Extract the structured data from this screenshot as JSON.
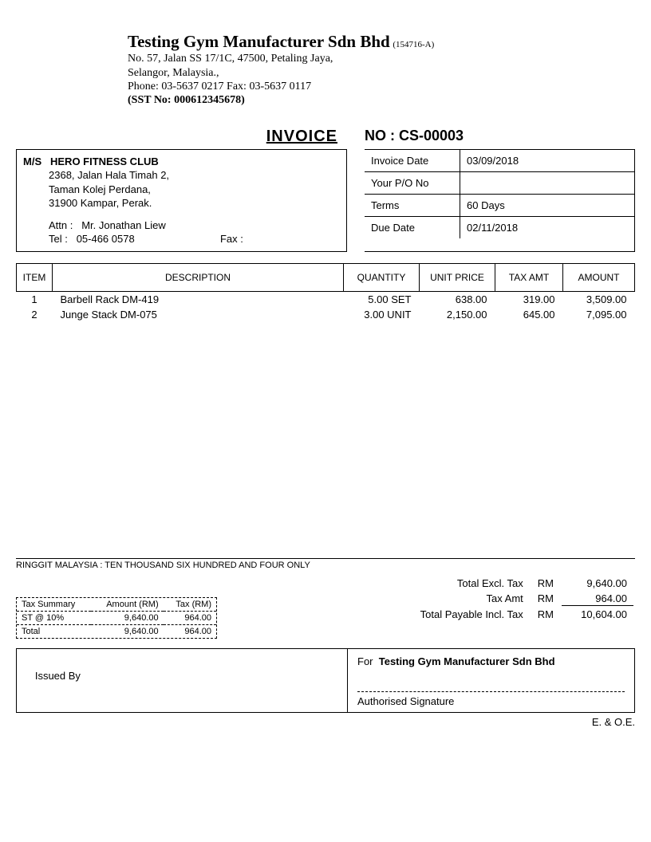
{
  "company": {
    "name": "Testing Gym Manufacturer Sdn Bhd",
    "reg_no": "(154716-A)",
    "addr1": "No. 57, Jalan SS 17/1C, 47500, Petaling Jaya,",
    "addr2": "Selangor, Malaysia.,",
    "phone_fax": "Phone: 03-5637 0217   Fax: 03-5637 0117",
    "sst": "(SST No: 000612345678)"
  },
  "doc": {
    "title": "INVOICE",
    "no_label": "NO : ",
    "no": "CS-00003"
  },
  "customer": {
    "ms": "M/S",
    "name": "HERO FITNESS CLUB",
    "addr1": "2368, Jalan Hala Timah 2,",
    "addr2": "Taman Kolej Perdana,",
    "addr3": "31900 Kampar, Perak.",
    "attn_label": "Attn  :",
    "attn": "Mr. Jonathan Liew",
    "tel_label": "Tel    :",
    "tel": "05-466 0578",
    "fax_label": "Fax :"
  },
  "meta": {
    "invoice_date_label": "Invoice Date",
    "invoice_date": "03/09/2018",
    "po_label": "Your P/O No",
    "po": "",
    "terms_label": "Terms",
    "terms": "60 Days",
    "due_label": "Due Date",
    "due": "02/11/2018"
  },
  "cols": {
    "item": "ITEM",
    "desc": "DESCRIPTION",
    "qty": "QUANTITY",
    "price": "UNIT PRICE",
    "tax": "TAX AMT",
    "amt": "AMOUNT"
  },
  "lines": [
    {
      "no": "1",
      "desc": "Barbell Rack DM-419",
      "qty": "5.00 SET",
      "price": "638.00",
      "tax": "319.00",
      "amt": "3,509.00"
    },
    {
      "no": "2",
      "desc": "Junge Stack DM-075",
      "qty": "3.00 UNIT",
      "price": "2,150.00",
      "tax": "645.00",
      "amt": "7,095.00"
    }
  ],
  "words_label": "RINGGIT MALAYSIA : ",
  "words": "TEN THOUSAND SIX HUNDRED AND FOUR ONLY",
  "totals": {
    "excl_label": "Total Excl. Tax",
    "tax_label": "Tax Amt",
    "incl_label": "Total Payable Incl. Tax",
    "currency": "RM",
    "excl": "9,640.00",
    "tax": "964.00",
    "incl": "10,604.00"
  },
  "tax_summary": {
    "header_label": "Tax Summary",
    "header_amt": "Amount (RM)",
    "header_tax": "Tax (RM)",
    "rows": [
      {
        "label": "ST @ 10%",
        "amt": "9,640.00",
        "tax": "964.00"
      },
      {
        "label": "Total",
        "amt": "9,640.00",
        "tax": "964.00"
      }
    ]
  },
  "signatures": {
    "issued_by": "Issued By",
    "for_label": "For",
    "for_name": "Testing Gym Manufacturer Sdn Bhd",
    "auth": "Authorised Signature"
  },
  "eoe": "E. & O.E."
}
